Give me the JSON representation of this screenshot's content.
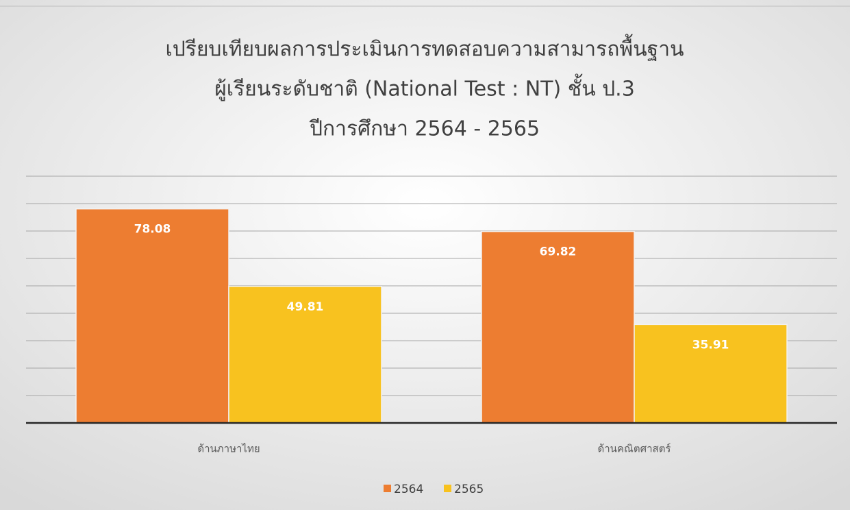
{
  "chart_data": {
    "type": "bar",
    "title": [
      "เปรียบเทียบผลการประเมินการทดสอบความสามารถพื้นฐาน",
      "ผู้เรียนระดับชาติ (National Test : NT) ชั้น ป.3",
      "ปีการศึกษา 2564 - 2565"
    ],
    "categories": [
      "ด้านภาษาไทย",
      "ด้านคณิตศาสตร์"
    ],
    "series": [
      {
        "name": "2564",
        "color": "#ED7D31",
        "values": [
          78.08,
          69.82
        ]
      },
      {
        "name": "2565",
        "color": "#F8C21F",
        "values": [
          49.81,
          35.91
        ]
      }
    ],
    "ylim": [
      0,
      90
    ],
    "yticks": [
      0,
      10,
      20,
      30,
      40,
      50,
      60,
      70,
      80,
      90
    ],
    "grid": true,
    "legend": "bottom"
  }
}
